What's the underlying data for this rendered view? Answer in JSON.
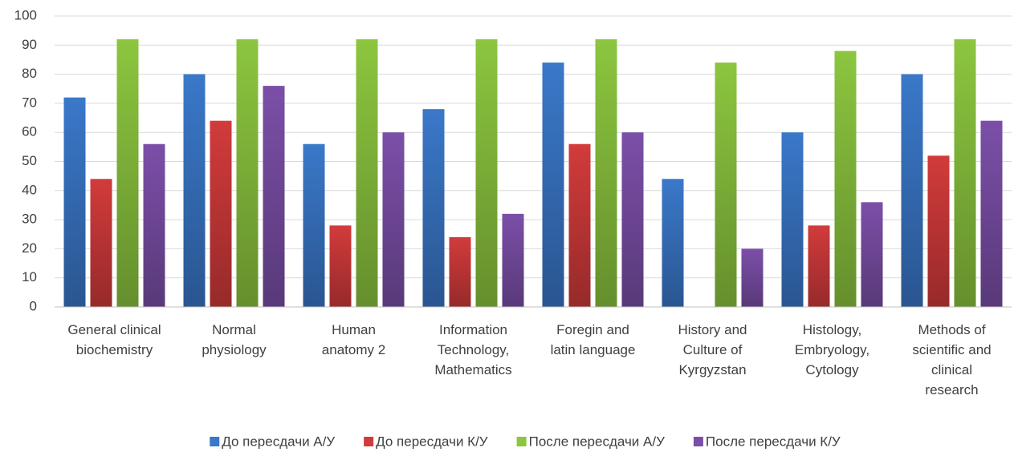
{
  "chart_data": {
    "type": "bar",
    "categories": [
      "General clinical\nbiochemistry",
      "Normal\nphysiology",
      "Human\nanatomy 2",
      "Information\nTechnology,\nMathematics",
      "Foregin and\nlatin language",
      "History and\nCulture of\nKyrgyzstan",
      "Histology,\nEmbryology,\nCytology",
      "Methods of\nscientific and\nclinical\nresearch"
    ],
    "series": [
      {
        "name": "До пересдачи А/У",
        "color": "#3a78c9",
        "values": [
          72,
          80,
          56,
          68,
          84,
          44,
          60,
          80
        ]
      },
      {
        "name": "До пересдачи К/У",
        "color": "#d23b3b",
        "values": [
          44,
          64,
          28,
          24,
          56,
          0,
          28,
          52
        ]
      },
      {
        "name": "После пересдачи А/У",
        "color": "#8cc63f",
        "values": [
          92,
          92,
          92,
          92,
          92,
          84,
          88,
          92
        ]
      },
      {
        "name": "После пересдачи К/У",
        "color": "#7b4fa8",
        "values": [
          56,
          76,
          60,
          32,
          60,
          20,
          36,
          64
        ]
      }
    ],
    "ylim": [
      0,
      100
    ],
    "yticks": [
      0,
      10,
      20,
      30,
      40,
      50,
      60,
      70,
      80,
      90,
      100
    ],
    "grid": true,
    "legend": "bottom"
  }
}
